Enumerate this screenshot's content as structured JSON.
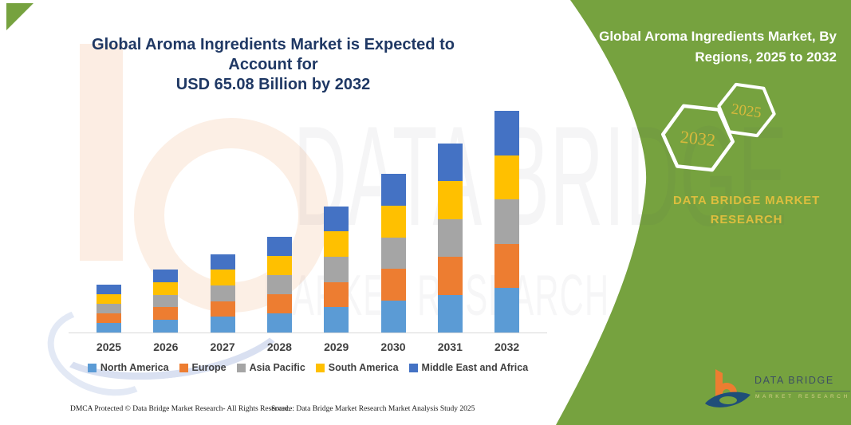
{
  "page": {
    "title_line1": "Global Aroma Ingredients Market is Expected to Account for",
    "title_line2": "USD 65.08 Billion by 2032"
  },
  "chart_data": {
    "type": "bar",
    "stacked": true,
    "unit": "USD Billion",
    "title": "Global Aroma Ingredients Market is Expected to Account for USD 65.08 Billion by 2032",
    "x": [
      "2025",
      "2026",
      "2027",
      "2028",
      "2029",
      "2030",
      "2031",
      "2032"
    ],
    "series": [
      {
        "name": "North America",
        "color": "#5B9BD5",
        "values": [
          2.8,
          3.7,
          4.6,
          5.6,
          7.4,
          9.3,
          11.1,
          13.0
        ]
      },
      {
        "name": "Europe",
        "color": "#ED7D31",
        "values": [
          2.8,
          3.7,
          4.6,
          5.6,
          7.4,
          9.3,
          11.1,
          13.0
        ]
      },
      {
        "name": "Asia Pacific",
        "color": "#A5A5A5",
        "values": [
          2.8,
          3.7,
          4.6,
          5.6,
          7.4,
          9.3,
          11.1,
          13.0
        ]
      },
      {
        "name": "South America",
        "color": "#FFC000",
        "values": [
          2.8,
          3.7,
          4.6,
          5.6,
          7.4,
          9.3,
          11.1,
          13.0
        ]
      },
      {
        "name": "Middle East and Africa",
        "color": "#4472C4",
        "values": [
          2.8,
          3.7,
          4.6,
          5.6,
          7.4,
          9.3,
          11.1,
          13.0
        ]
      }
    ],
    "totals_estimated_usd_billion": [
      14.0,
      18.5,
      23.0,
      28.0,
      37.0,
      46.5,
      55.5,
      65.08
    ],
    "xlabel": "",
    "ylabel": "",
    "y_axis_visible": false,
    "grid": false,
    "legend_position": "bottom"
  },
  "footer": {
    "dmca": "DMCA Protected © Data Bridge Market Research-  All Rights Reserved.",
    "source": "Source: Data Bridge Market Research  Market Analysis Study 2025"
  },
  "panel": {
    "green": "#76A23F",
    "gold": "#D8B93C",
    "title_line1": "Global Aroma Ingredients Market, By",
    "title_line2": "Regions, 2025 to 2032",
    "hex_year_right": "2025",
    "hex_year_left": "2032",
    "brand_line1": "DATA BRIDGE MARKET",
    "brand_line2": "RESEARCH"
  },
  "logo": {
    "name": "DATA BRIDGE",
    "subtitle": "MARKET RESEARCH",
    "orange": "#ED7D31",
    "blue": "#1F4E79"
  },
  "watermark": {
    "line1": "DATA BRIDGE",
    "line2": "MARKET RESEARCH"
  }
}
